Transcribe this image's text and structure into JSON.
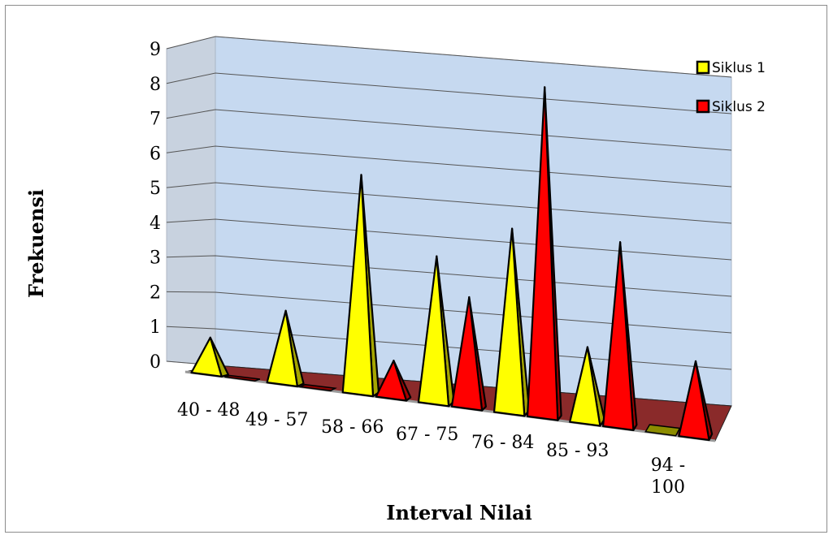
{
  "chart_data": {
    "type": "bar",
    "style": "3d-pyramid",
    "categories": [
      "40 - 48",
      "49 - 57",
      "58 - 66",
      "67 - 75",
      "76 - 84",
      "85 - 93",
      "94 - 100"
    ],
    "series": [
      {
        "name": "Siklus 1",
        "color": "#ffff00",
        "values": [
          1,
          2,
          6,
          4,
          5,
          2,
          0
        ]
      },
      {
        "name": "Siklus 2",
        "color": "#ff0000",
        "values": [
          0,
          0,
          1,
          3,
          9,
          5,
          2
        ]
      }
    ],
    "xlabel": "Interval Nilai",
    "ylabel": "Frekuensi",
    "ylim": [
      0,
      9
    ],
    "yticks": [
      "0",
      "1",
      "2",
      "3",
      "4",
      "5",
      "6",
      "7",
      "8",
      "9"
    ],
    "grid": true,
    "legend_position": "right"
  }
}
